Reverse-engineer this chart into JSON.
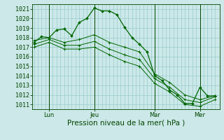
{
  "background_color": "#cce8e8",
  "grid_color": "#99cccc",
  "line_color": "#006600",
  "dark_line_color": "#004400",
  "ylim": [
    1010.5,
    1021.5
  ],
  "yticks": [
    1011,
    1012,
    1013,
    1014,
    1015,
    1016,
    1017,
    1018,
    1019,
    1020,
    1021
  ],
  "xlabel": "Pression niveau de la mer( hPa )",
  "xlabel_fontsize": 7.5,
  "tick_fontsize": 6,
  "xtick_labels": [
    "Lun",
    "Jeu",
    "Mar",
    "Mer"
  ],
  "xtick_positions": [
    1,
    4,
    8,
    11
  ],
  "line1_x": [
    0,
    0.5,
    1,
    1.5,
    2,
    2.5,
    3,
    3.5,
    4,
    4.5,
    5,
    5.5,
    6,
    6.5,
    7,
    7.5,
    8,
    8.5,
    9,
    9.5,
    10,
    10.5,
    11,
    11.5,
    12
  ],
  "line1_y": [
    1017.5,
    1018.1,
    1018.0,
    1018.8,
    1018.9,
    1018.2,
    1019.6,
    1020.0,
    1021.1,
    1020.8,
    1020.8,
    1020.4,
    1019.1,
    1018.0,
    1017.3,
    1016.5,
    1014.0,
    1013.5,
    1012.5,
    1012.0,
    1011.1,
    1011.1,
    1012.8,
    1011.9,
    1011.9
  ],
  "line2_x": [
    0,
    1,
    2,
    3,
    4,
    5,
    6,
    7,
    8,
    9,
    10,
    11,
    12
  ],
  "line2_y": [
    1017.7,
    1018.0,
    1017.5,
    1017.8,
    1018.3,
    1017.5,
    1017.0,
    1016.5,
    1014.2,
    1013.3,
    1012.0,
    1011.5,
    1011.9
  ],
  "line3_x": [
    0,
    1,
    2,
    3,
    4,
    5,
    6,
    7,
    8,
    9,
    10,
    11,
    12
  ],
  "line3_y": [
    1017.3,
    1017.8,
    1017.2,
    1017.2,
    1017.6,
    1016.8,
    1016.2,
    1015.7,
    1013.7,
    1012.8,
    1011.5,
    1011.2,
    1011.8
  ],
  "line4_x": [
    0,
    1,
    2,
    3,
    4,
    5,
    6,
    7,
    8,
    9,
    10,
    11,
    12
  ],
  "line4_y": [
    1017.0,
    1017.5,
    1016.8,
    1016.8,
    1017.0,
    1016.2,
    1015.5,
    1015.0,
    1013.2,
    1012.3,
    1011.0,
    1010.8,
    1011.5
  ],
  "vline_positions": [
    1,
    4,
    8,
    11
  ],
  "xlim": [
    -0.1,
    12.3
  ]
}
